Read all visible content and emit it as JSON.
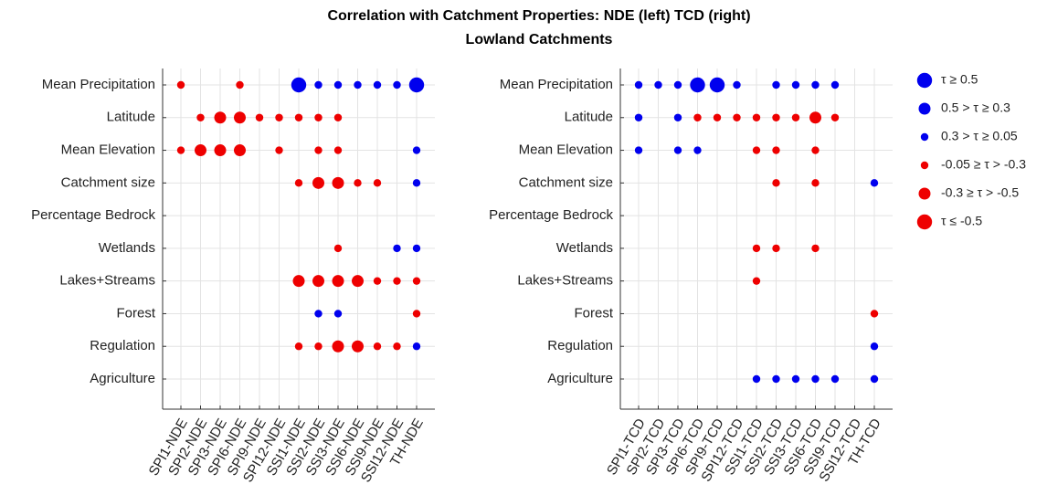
{
  "chart_data": {
    "type": "dot-matrix",
    "title": "Correlation with Catchment Properties: NDE (left) TCD (right)",
    "subtitle": "Lowland Catchments",
    "legend": [
      {
        "name": "τ ≥ 0.5",
        "code": 3,
        "color": "#0000ee"
      },
      {
        "name": "0.5 > τ ≥ 0.3",
        "code": 2,
        "color": "#0000ee"
      },
      {
        "name": "0.3 > τ ≥ 0.05",
        "code": 1,
        "color": "#0000ee"
      },
      {
        "name": "-0.05 ≥ τ > -0.3",
        "code": -1,
        "color": "#ee0000"
      },
      {
        "name": "-0.3 ≥ τ > -0.5",
        "code": -2,
        "color": "#ee0000"
      },
      {
        "name": "τ ≤ -0.5",
        "code": -3,
        "color": "#ee0000"
      }
    ],
    "panels": [
      {
        "categories": [
          "SPI1-NDE",
          "SPI2-NDE",
          "SPI3-NDE",
          "SPI6-NDE",
          "SPI9-NDE",
          "SPI12-NDE",
          "SSI1-NDE",
          "SSI2-NDE",
          "SSI3-NDE",
          "SSI6-NDE",
          "SSI9-NDE",
          "SSI12-NDE",
          "TH-NDE"
        ],
        "rows": [
          "Mean Precipitation",
          "Latitude",
          "Mean Elevation",
          "Catchment size",
          "Percentage Bedrock",
          "Wetlands",
          "Lakes+Streams",
          "Forest",
          "Regulation",
          "Agriculture"
        ],
        "cells": [
          [
            -1,
            null,
            null,
            -1,
            null,
            null,
            3,
            1,
            1,
            1,
            1,
            1,
            3
          ],
          [
            null,
            -1,
            -2,
            -2,
            -1,
            -1,
            -1,
            -1,
            -1,
            null,
            null,
            null,
            null
          ],
          [
            -1,
            -2,
            -2,
            -2,
            null,
            -1,
            null,
            -1,
            -1,
            null,
            null,
            null,
            1
          ],
          [
            null,
            null,
            null,
            null,
            null,
            null,
            -1,
            -2,
            -2,
            -1,
            -1,
            null,
            1
          ],
          [
            null,
            null,
            null,
            null,
            null,
            null,
            null,
            null,
            null,
            null,
            null,
            null,
            null
          ],
          [
            null,
            null,
            null,
            null,
            null,
            null,
            null,
            null,
            -1,
            null,
            null,
            1,
            1
          ],
          [
            null,
            null,
            null,
            null,
            null,
            null,
            -2,
            -2,
            -2,
            -2,
            -1,
            -1,
            -1
          ],
          [
            null,
            null,
            null,
            null,
            null,
            null,
            null,
            1,
            1,
            null,
            null,
            null,
            -1
          ],
          [
            null,
            null,
            null,
            null,
            null,
            null,
            -1,
            -1,
            -2,
            -2,
            -1,
            -1,
            1
          ],
          [
            null,
            null,
            null,
            null,
            null,
            null,
            null,
            null,
            null,
            null,
            null,
            null,
            null
          ]
        ]
      },
      {
        "categories": [
          "SPI1-TCD",
          "SPI2-TCD",
          "SPI3-TCD",
          "SPI6-TCD",
          "SPI9-TCD",
          "SPI12-TCD",
          "SSI1-TCD",
          "SSI2-TCD",
          "SSI3-TCD",
          "SSI6-TCD",
          "SSI9-TCD",
          "SSI12-TCD",
          "TH-TCD"
        ],
        "rows": [
          "Mean Precipitation",
          "Latitude",
          "Mean Elevation",
          "Catchment size",
          "Percentage Bedrock",
          "Wetlands",
          "Lakes+Streams",
          "Forest",
          "Regulation",
          "Agriculture"
        ],
        "cells": [
          [
            1,
            1,
            1,
            3,
            3,
            1,
            null,
            1,
            1,
            1,
            1,
            null,
            null
          ],
          [
            1,
            null,
            1,
            -1,
            -1,
            -1,
            -1,
            -1,
            -1,
            -2,
            -1,
            null,
            null
          ],
          [
            1,
            null,
            1,
            1,
            null,
            null,
            -1,
            -1,
            null,
            -1,
            null,
            null,
            null
          ],
          [
            null,
            null,
            null,
            null,
            null,
            null,
            null,
            -1,
            null,
            -1,
            null,
            null,
            1
          ],
          [
            null,
            null,
            null,
            null,
            null,
            null,
            null,
            null,
            null,
            null,
            null,
            null,
            null
          ],
          [
            null,
            null,
            null,
            null,
            null,
            null,
            -1,
            -1,
            null,
            -1,
            null,
            null,
            null
          ],
          [
            null,
            null,
            null,
            null,
            null,
            null,
            -1,
            null,
            null,
            null,
            null,
            null,
            null
          ],
          [
            null,
            null,
            null,
            null,
            null,
            null,
            null,
            null,
            null,
            null,
            null,
            null,
            -1
          ],
          [
            null,
            null,
            null,
            null,
            null,
            null,
            null,
            null,
            null,
            null,
            null,
            null,
            1
          ],
          [
            null,
            null,
            null,
            null,
            null,
            null,
            1,
            1,
            1,
            1,
            1,
            null,
            1
          ]
        ]
      }
    ]
  }
}
